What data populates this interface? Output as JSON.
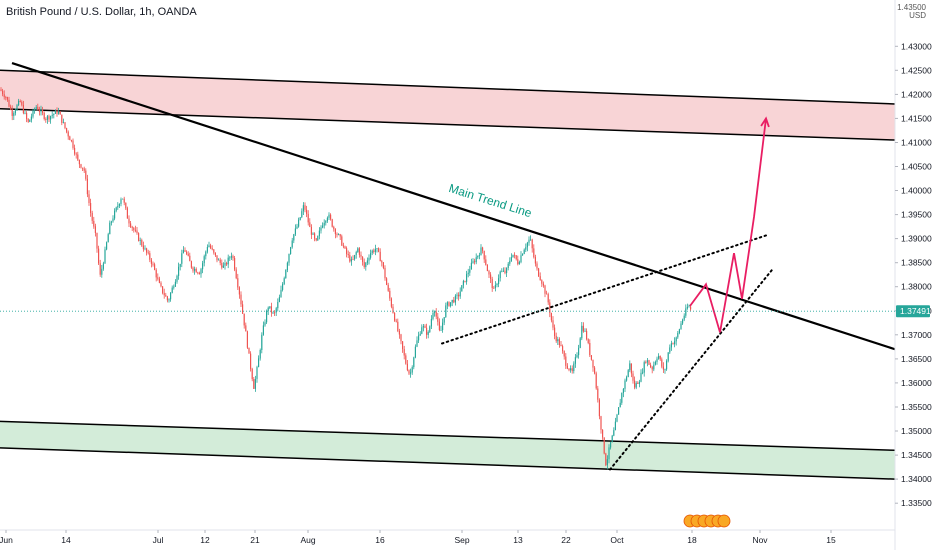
{
  "header": {
    "symbol_title": "British Pound / U.S. Dollar, 1h, OANDA",
    "axis_top_label": "1.43500",
    "currency": "USD"
  },
  "chart_data": {
    "type": "candlestick",
    "title": "British Pound / U.S. Dollar, 1h, OANDA",
    "xlabel": "",
    "ylabel": "",
    "currency": "USD",
    "ylim": [
      1.3315,
      1.4365
    ],
    "y_ticks": [
      "1.43000",
      "1.42500",
      "1.42000",
      "1.41500",
      "1.41000",
      "1.40500",
      "1.40000",
      "1.39500",
      "1.39000",
      "1.38500",
      "1.38000",
      "1.37500",
      "1.37000",
      "1.36500",
      "1.36000",
      "1.35500",
      "1.35000",
      "1.34500",
      "1.34000",
      "1.33500"
    ],
    "x_ticks": [
      "Jun",
      "14",
      "Jul",
      "12",
      "21",
      "Aug",
      "16",
      "Sep",
      "13",
      "22",
      "Oct",
      "18",
      "Nov",
      "15"
    ],
    "last_price": "1.37491",
    "colors": {
      "up": "#26a69a",
      "down": "#ef5350",
      "supply_zone": "#f8d4d6",
      "demand_zone": "#d3ecd9",
      "projection": "#e91e63",
      "last_price_bg": "#26a69a",
      "trend_label": "#089981"
    },
    "price_path": [
      [
        0,
        1.421
      ],
      [
        6,
        1.4195
      ],
      [
        12,
        1.416
      ],
      [
        20,
        1.4185
      ],
      [
        28,
        1.414
      ],
      [
        36,
        1.4175
      ],
      [
        46,
        1.415
      ],
      [
        58,
        1.4165
      ],
      [
        66,
        1.4125
      ],
      [
        72,
        1.41
      ],
      [
        78,
        1.406
      ],
      [
        84,
        1.4045
      ],
      [
        90,
        1.396
      ],
      [
        96,
        1.39
      ],
      [
        100,
        1.382
      ],
      [
        104,
        1.386
      ],
      [
        110,
        1.393
      ],
      [
        116,
        1.396
      ],
      [
        122,
        1.399
      ],
      [
        128,
        1.394
      ],
      [
        136,
        1.391
      ],
      [
        144,
        1.388
      ],
      [
        152,
        1.385
      ],
      [
        160,
        1.38
      ],
      [
        168,
        1.377
      ],
      [
        176,
        1.382
      ],
      [
        184,
        1.388
      ],
      [
        192,
        1.384
      ],
      [
        200,
        1.383
      ],
      [
        208,
        1.389
      ],
      [
        216,
        1.386
      ],
      [
        224,
        1.384
      ],
      [
        232,
        1.387
      ],
      [
        240,
        1.378
      ],
      [
        246,
        1.37
      ],
      [
        250,
        1.364
      ],
      [
        254,
        1.359
      ],
      [
        258,
        1.364
      ],
      [
        262,
        1.37
      ],
      [
        268,
        1.376
      ],
      [
        274,
        1.374
      ],
      [
        280,
        1.378
      ],
      [
        286,
        1.384
      ],
      [
        292,
        1.39
      ],
      [
        298,
        1.393
      ],
      [
        304,
        1.397
      ],
      [
        310,
        1.392
      ],
      [
        316,
        1.389
      ],
      [
        322,
        1.393
      ],
      [
        328,
        1.395
      ],
      [
        334,
        1.392
      ],
      [
        340,
        1.39
      ],
      [
        346,
        1.387
      ],
      [
        352,
        1.385
      ],
      [
        358,
        1.388
      ],
      [
        364,
        1.384
      ],
      [
        370,
        1.387
      ],
      [
        376,
        1.388
      ],
      [
        382,
        1.385
      ],
      [
        388,
        1.379
      ],
      [
        394,
        1.374
      ],
      [
        400,
        1.369
      ],
      [
        406,
        1.364
      ],
      [
        410,
        1.3615
      ],
      [
        416,
        1.368
      ],
      [
        422,
        1.372
      ],
      [
        428,
        1.37
      ],
      [
        434,
        1.376
      ],
      [
        440,
        1.37
      ],
      [
        446,
        1.376
      ],
      [
        452,
        1.377
      ],
      [
        458,
        1.378
      ],
      [
        464,
        1.381
      ],
      [
        470,
        1.384
      ],
      [
        476,
        1.386
      ],
      [
        482,
        1.388
      ],
      [
        488,
        1.383
      ],
      [
        494,
        1.379
      ],
      [
        500,
        1.383
      ],
      [
        506,
        1.383
      ],
      [
        512,
        1.387
      ],
      [
        518,
        1.385
      ],
      [
        524,
        1.388
      ],
      [
        530,
        1.39
      ],
      [
        536,
        1.384
      ],
      [
        542,
        1.381
      ],
      [
        548,
        1.377
      ],
      [
        554,
        1.37
      ],
      [
        560,
        1.368
      ],
      [
        566,
        1.364
      ],
      [
        572,
        1.362
      ],
      [
        578,
        1.367
      ],
      [
        582,
        1.372
      ],
      [
        586,
        1.37
      ],
      [
        590,
        1.366
      ],
      [
        594,
        1.363
      ],
      [
        598,
        1.356
      ],
      [
        602,
        1.349
      ],
      [
        606,
        1.343
      ],
      [
        610,
        1.347
      ],
      [
        614,
        1.35
      ],
      [
        618,
        1.354
      ],
      [
        622,
        1.358
      ],
      [
        626,
        1.361
      ],
      [
        630,
        1.364
      ],
      [
        634,
        1.359
      ],
      [
        640,
        1.361
      ],
      [
        646,
        1.365
      ],
      [
        652,
        1.363
      ],
      [
        658,
        1.366
      ],
      [
        664,
        1.362
      ],
      [
        670,
        1.368
      ],
      [
        676,
        1.369
      ],
      [
        682,
        1.373
      ],
      [
        688,
        1.376
      ],
      [
        692,
        1.375
      ]
    ],
    "zones": [
      {
        "name": "supply",
        "upper": [
          [
            0,
            1.425
          ],
          [
            895,
            1.418
          ]
        ],
        "lower": [
          [
            0,
            1.417
          ],
          [
            895,
            1.4105
          ]
        ]
      },
      {
        "name": "demand",
        "upper": [
          [
            0,
            1.352
          ],
          [
            895,
            1.346
          ]
        ],
        "lower": [
          [
            0,
            1.3465
          ],
          [
            895,
            1.34
          ]
        ]
      }
    ],
    "trend_line": {
      "label": "Main Trend Line",
      "points": [
        [
          12,
          1.4265
        ],
        [
          895,
          1.367
        ]
      ]
    },
    "support_lines": [
      {
        "points": [
          [
            442,
            1.3682
          ],
          [
            768,
            1.3908
          ]
        ]
      },
      {
        "points": [
          [
            610,
            1.342
          ],
          [
            772,
            1.3835
          ]
        ]
      }
    ],
    "projection_path": [
      [
        690,
        1.376
      ],
      [
        706,
        1.3805
      ],
      [
        720,
        1.3705
      ],
      [
        734,
        1.387
      ],
      [
        742,
        1.3775
      ],
      [
        754,
        1.3945
      ],
      [
        766,
        1.415
      ]
    ]
  }
}
